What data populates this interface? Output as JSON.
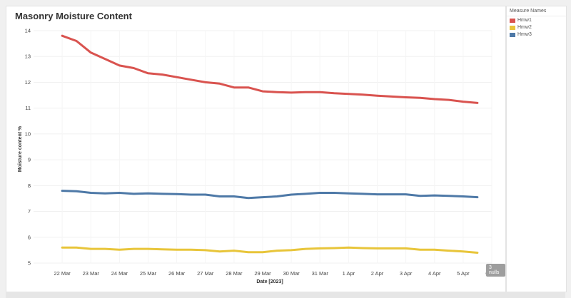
{
  "legend": {
    "title": "Measure Names",
    "items": [
      {
        "label": "Hmw1",
        "color": "#d9534f"
      },
      {
        "label": "Hmw2",
        "color": "#e8c53a"
      },
      {
        "label": "Hmw3",
        "color": "#4e79a7"
      }
    ]
  },
  "nulls_badge": "3 nulls",
  "chart_data": {
    "type": "line",
    "title": "Masonry Moisture Content",
    "xlabel": "Date [2023]",
    "ylabel": "Moisture content %",
    "ylim": [
      5,
      14
    ],
    "yticks": [
      5,
      6,
      7,
      8,
      9,
      10,
      11,
      12,
      13,
      14
    ],
    "xlim": [
      "2023-03-21",
      "2023-04-06"
    ],
    "xticks": [
      {
        "date": "2023-03-22",
        "label": "22 Mar"
      },
      {
        "date": "2023-03-23",
        "label": "23 Mar"
      },
      {
        "date": "2023-03-24",
        "label": "24 Mar"
      },
      {
        "date": "2023-03-25",
        "label": "25 Mar"
      },
      {
        "date": "2023-03-26",
        "label": "26 Mar"
      },
      {
        "date": "2023-03-27",
        "label": "27 Mar"
      },
      {
        "date": "2023-03-28",
        "label": "28 Mar"
      },
      {
        "date": "2023-03-29",
        "label": "29 Mar"
      },
      {
        "date": "2023-03-30",
        "label": "30 Mar"
      },
      {
        "date": "2023-03-31",
        "label": "31 Mar"
      },
      {
        "date": "2023-04-01",
        "label": "1 Apr"
      },
      {
        "date": "2023-04-02",
        "label": "2 Apr"
      },
      {
        "date": "2023-04-03",
        "label": "3 Apr"
      },
      {
        "date": "2023-04-04",
        "label": "4 Apr"
      },
      {
        "date": "2023-04-05",
        "label": "5 Apr"
      },
      {
        "date": "2023-04-06",
        "label": "6 Apr"
      }
    ],
    "grid": true,
    "legend_position": "right",
    "series": [
      {
        "name": "Hmw1",
        "color": "#d9534f",
        "x": [
          "2023-03-22 00:00",
          "2023-03-22 12:00",
          "2023-03-23 00:00",
          "2023-03-23 12:00",
          "2023-03-24 00:00",
          "2023-03-24 12:00",
          "2023-03-25 00:00",
          "2023-03-25 12:00",
          "2023-03-26 00:00",
          "2023-03-26 12:00",
          "2023-03-27 00:00",
          "2023-03-27 12:00",
          "2023-03-28 00:00",
          "2023-03-28 12:00",
          "2023-03-29 00:00",
          "2023-03-29 12:00",
          "2023-03-30 00:00",
          "2023-03-30 12:00",
          "2023-03-31 00:00",
          "2023-03-31 12:00",
          "2023-04-01 00:00",
          "2023-04-01 12:00",
          "2023-04-02 00:00",
          "2023-04-02 12:00",
          "2023-04-03 00:00",
          "2023-04-03 12:00",
          "2023-04-04 00:00",
          "2023-04-04 12:00",
          "2023-04-05 00:00",
          "2023-04-05 12:00"
        ],
        "y": [
          13.8,
          13.6,
          13.15,
          12.9,
          12.65,
          12.55,
          12.35,
          12.3,
          12.2,
          12.1,
          12.0,
          11.95,
          11.8,
          11.8,
          11.65,
          11.62,
          11.6,
          11.62,
          11.62,
          11.58,
          11.55,
          11.52,
          11.48,
          11.45,
          11.42,
          11.4,
          11.35,
          11.32,
          11.25,
          11.2
        ]
      },
      {
        "name": "Hmw2",
        "color": "#e8c53a",
        "x": [
          "2023-03-22 00:00",
          "2023-03-22 12:00",
          "2023-03-23 00:00",
          "2023-03-23 12:00",
          "2023-03-24 00:00",
          "2023-03-24 12:00",
          "2023-03-25 00:00",
          "2023-03-25 12:00",
          "2023-03-26 00:00",
          "2023-03-26 12:00",
          "2023-03-27 00:00",
          "2023-03-27 12:00",
          "2023-03-28 00:00",
          "2023-03-28 12:00",
          "2023-03-29 00:00",
          "2023-03-29 12:00",
          "2023-03-30 00:00",
          "2023-03-30 12:00",
          "2023-03-31 00:00",
          "2023-03-31 12:00",
          "2023-04-01 00:00",
          "2023-04-01 12:00",
          "2023-04-02 00:00",
          "2023-04-02 12:00",
          "2023-04-03 00:00",
          "2023-04-03 12:00",
          "2023-04-04 00:00",
          "2023-04-04 12:00",
          "2023-04-05 00:00",
          "2023-04-05 12:00"
        ],
        "y": [
          5.6,
          5.6,
          5.55,
          5.55,
          5.52,
          5.55,
          5.55,
          5.53,
          5.52,
          5.52,
          5.5,
          5.45,
          5.48,
          5.42,
          5.42,
          5.48,
          5.5,
          5.55,
          5.57,
          5.58,
          5.6,
          5.58,
          5.57,
          5.57,
          5.57,
          5.52,
          5.52,
          5.48,
          5.45,
          5.4
        ]
      },
      {
        "name": "Hmw3",
        "color": "#4e79a7",
        "x": [
          "2023-03-22 00:00",
          "2023-03-22 12:00",
          "2023-03-23 00:00",
          "2023-03-23 12:00",
          "2023-03-24 00:00",
          "2023-03-24 12:00",
          "2023-03-25 00:00",
          "2023-03-25 12:00",
          "2023-03-26 00:00",
          "2023-03-26 12:00",
          "2023-03-27 00:00",
          "2023-03-27 12:00",
          "2023-03-28 00:00",
          "2023-03-28 12:00",
          "2023-03-29 00:00",
          "2023-03-29 12:00",
          "2023-03-30 00:00",
          "2023-03-30 12:00",
          "2023-03-31 00:00",
          "2023-03-31 12:00",
          "2023-04-01 00:00",
          "2023-04-01 12:00",
          "2023-04-02 00:00",
          "2023-04-02 12:00",
          "2023-04-03 00:00",
          "2023-04-03 12:00",
          "2023-04-04 00:00",
          "2023-04-04 12:00",
          "2023-04-05 00:00",
          "2023-04-05 12:00"
        ],
        "y": [
          7.8,
          7.78,
          7.72,
          7.7,
          7.72,
          7.68,
          7.7,
          7.68,
          7.67,
          7.65,
          7.65,
          7.58,
          7.58,
          7.52,
          7.55,
          7.58,
          7.65,
          7.68,
          7.72,
          7.72,
          7.7,
          7.68,
          7.66,
          7.66,
          7.66,
          7.6,
          7.62,
          7.6,
          7.58,
          7.55
        ]
      }
    ]
  }
}
